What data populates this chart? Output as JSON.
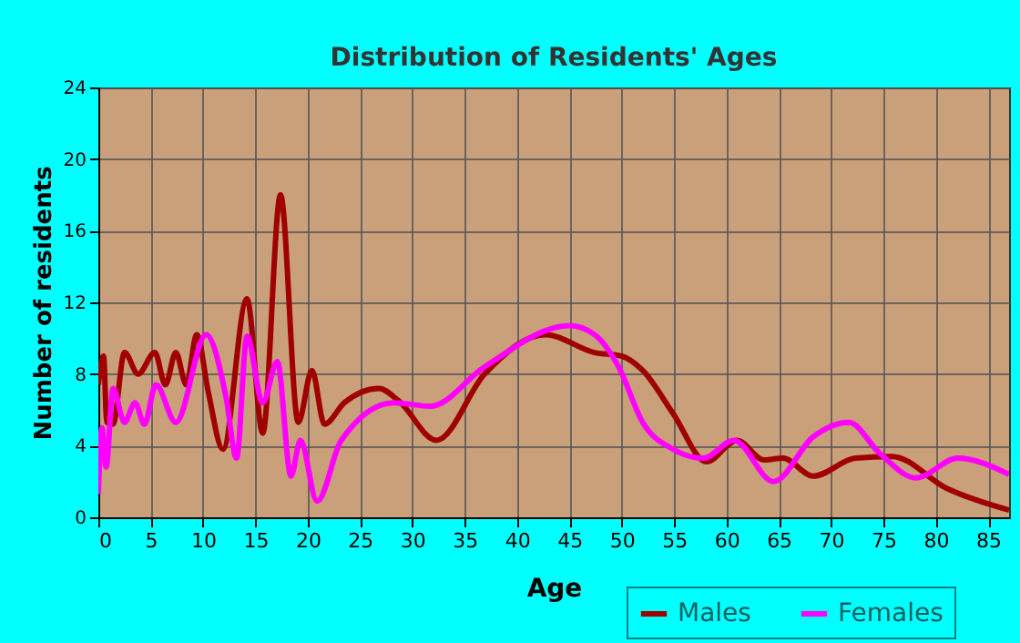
{
  "chart_data": {
    "type": "line",
    "title": "Distribution of Residents' Ages",
    "xlabel": "Age",
    "ylabel": "Number of residents",
    "xlim": [
      0,
      87
    ],
    "xticks": [
      0,
      5,
      10,
      15,
      20,
      25,
      30,
      35,
      40,
      45,
      50,
      55,
      60,
      65,
      70,
      75,
      80,
      85
    ],
    "ylim": [
      0,
      24
    ],
    "yticks": [
      0,
      4,
      8,
      12,
      16,
      20,
      24
    ],
    "grid": true,
    "legend": "bottom right",
    "series": [
      {
        "name": "Males",
        "color": "#a00000",
        "x": [
          0,
          0.5,
          0.8,
          1.4,
          2.5,
          3.8,
          5.4,
          6.4,
          7.4,
          8.4,
          9.4,
          10.5,
          11.9,
          14.2,
          15.7,
          17.4,
          19.1,
          20.4,
          21.6,
          23.5,
          26.8,
          28.7,
          32.3,
          36.9,
          42.7,
          47.4,
          50,
          52,
          54.9,
          58.1,
          61,
          63.6,
          65.4,
          68.3,
          72.3,
          75.8,
          81.1,
          87
        ],
        "values": [
          7.4,
          9.0,
          5.3,
          5.2,
          9.2,
          8.0,
          9.2,
          7.4,
          9.2,
          7.4,
          10.2,
          7.0,
          3.8,
          12.2,
          4.7,
          18.0,
          5.3,
          8.2,
          5.2,
          6.4,
          7.2,
          6.5,
          4.3,
          8.0,
          10.2,
          9.2,
          9.0,
          8.2,
          5.8,
          3.1,
          4.3,
          3.2,
          3.3,
          2.3,
          3.3,
          3.4,
          1.6,
          0.4
        ]
      },
      {
        "name": "Females",
        "color": "#ff00ff",
        "x": [
          0,
          0.35,
          0.75,
          1.4,
          2.5,
          3.5,
          4.4,
          5.5,
          7.4,
          10.3,
          12.2,
          13.2,
          14.2,
          15.7,
          17.1,
          18.4,
          19.3,
          20.9,
          23.2,
          28.2,
          31.7,
          36.9,
          45,
          47.4,
          49.7,
          52,
          54.9,
          57.8,
          60.7,
          64.5,
          68.3,
          71.7,
          74.6,
          78.1,
          82.1,
          87
        ],
        "values": [
          1.3,
          5.0,
          2.8,
          7.2,
          5.3,
          6.4,
          5.2,
          7.4,
          5.3,
          10.2,
          6.7,
          3.3,
          10.1,
          6.4,
          8.7,
          2.3,
          4.3,
          0.9,
          4.3,
          6.4,
          6.2,
          8.4,
          10.7,
          10.2,
          8.4,
          5.3,
          3.8,
          3.3,
          4.3,
          2.0,
          4.5,
          5.3,
          3.6,
          2.2,
          3.3,
          2.4
        ]
      }
    ]
  }
}
